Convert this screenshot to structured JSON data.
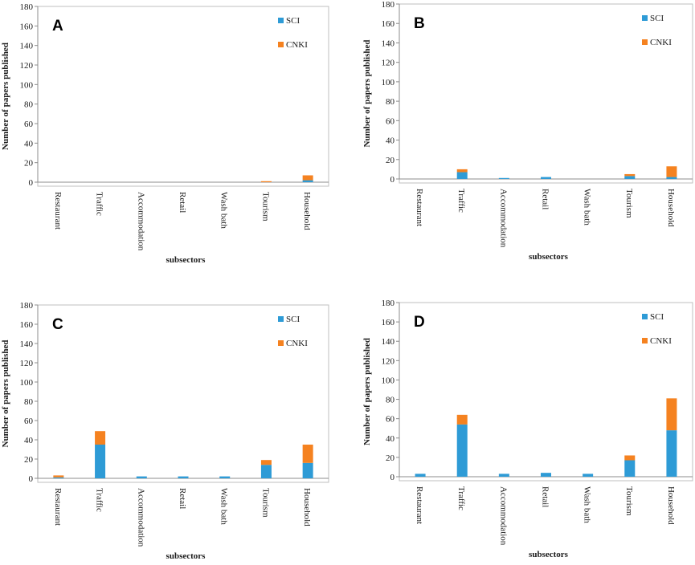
{
  "figure": {
    "series_colors": {
      "SCI": "#2e9bd6",
      "CNKI": "#f58220"
    }
  },
  "chart_data": [
    {
      "panel": "A",
      "type": "bar",
      "stacked": true,
      "categories": [
        "Restaurant",
        "Traffic",
        "Accommodation",
        "Retail",
        "Wash bath",
        "Tourism",
        "Household"
      ],
      "series": [
        {
          "name": "SCI",
          "values": [
            0,
            0,
            0,
            0,
            0,
            0,
            2
          ]
        },
        {
          "name": "CNKI",
          "values": [
            0,
            0,
            0,
            0,
            0,
            1,
            5
          ]
        }
      ],
      "yticks": [
        "0",
        "20",
        "40",
        "60",
        "80",
        "100",
        "120",
        "140",
        "160",
        "180"
      ],
      "ylim": [
        0,
        180
      ],
      "xlabel": "subsectors",
      "ylabel": "Number of papers published",
      "legend": "top-right"
    },
    {
      "panel": "B",
      "type": "bar",
      "stacked": true,
      "categories": [
        "Restaurant",
        "Traffic",
        "Accommodation",
        "Retail",
        "Wash bath",
        "Tourism",
        "Household"
      ],
      "series": [
        {
          "name": "SCI",
          "values": [
            0,
            7,
            1,
            2,
            0,
            3,
            2
          ]
        },
        {
          "name": "CNKI",
          "values": [
            0,
            3,
            0,
            0,
            0,
            2,
            11
          ]
        }
      ],
      "yticks": [
        "0",
        "20",
        "40",
        "60",
        "80",
        "100",
        "120",
        "140",
        "160",
        "180"
      ],
      "ylim": [
        0,
        180
      ],
      "xlabel": "subsectors",
      "ylabel": "Number of papers published",
      "legend": "top-right"
    },
    {
      "panel": "C",
      "type": "bar",
      "stacked": true,
      "categories": [
        "Restaurant",
        "Traffic",
        "Accommodation",
        "Retail",
        "Wash bath",
        "Tourism",
        "Household"
      ],
      "series": [
        {
          "name": "SCI",
          "values": [
            1,
            35,
            2,
            2,
            2,
            14,
            16
          ]
        },
        {
          "name": "CNKI",
          "values": [
            2,
            14,
            0,
            0,
            0,
            5,
            19
          ]
        }
      ],
      "yticks": [
        "0",
        "20",
        "40",
        "60",
        "80",
        "100",
        "120",
        "140",
        "160",
        "180"
      ],
      "ylim": [
        0,
        180
      ],
      "xlabel": "subsectors",
      "ylabel": "Number of papers published",
      "legend": "top-right"
    },
    {
      "panel": "D",
      "type": "bar",
      "stacked": true,
      "categories": [
        "Restaurant",
        "Traffic",
        "Accommodation",
        "Retail",
        "Wash bath",
        "Tourism",
        "Household"
      ],
      "series": [
        {
          "name": "SCI",
          "values": [
            3,
            54,
            3,
            4,
            3,
            17,
            48
          ]
        },
        {
          "name": "CNKI",
          "values": [
            0,
            10,
            0,
            0,
            0,
            5,
            33
          ]
        }
      ],
      "yticks": [
        "0",
        "20",
        "40",
        "60",
        "80",
        "100",
        "120",
        "140",
        "160",
        "180"
      ],
      "ylim": [
        0,
        180
      ],
      "xlabel": "subsectors",
      "ylabel": "Number of papers published",
      "legend": "top-right"
    }
  ]
}
